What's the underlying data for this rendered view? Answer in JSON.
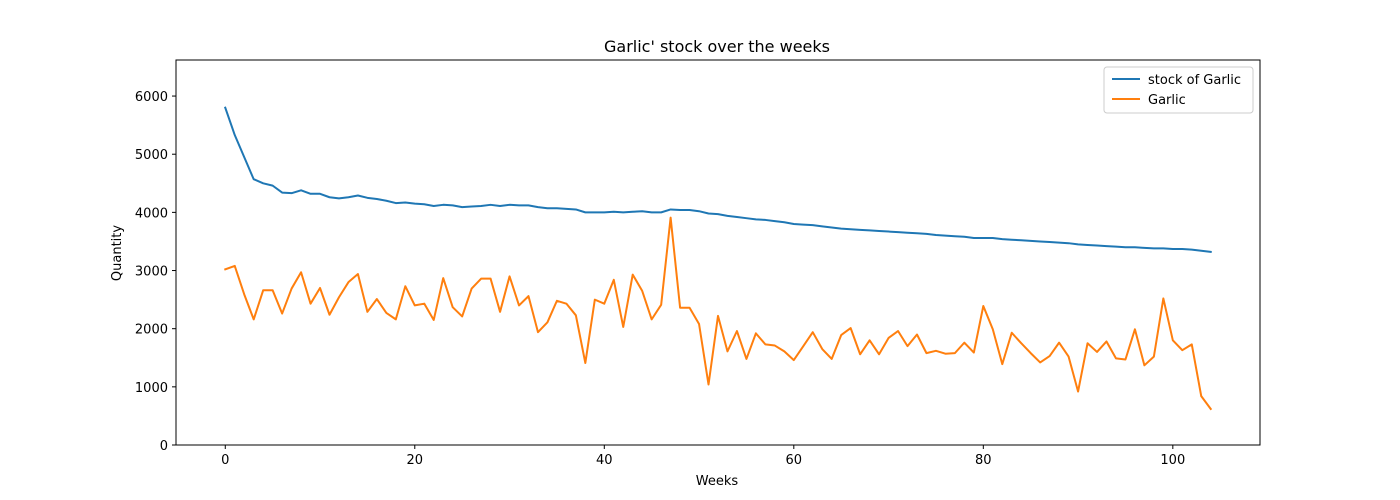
{
  "chart_data": {
    "type": "line",
    "title": "Garlic' stock over the weeks",
    "xlabel": "Weeks",
    "ylabel": "Quantity",
    "xlim": [
      -5.2,
      109.2
    ],
    "ylim": [
      0,
      6620
    ],
    "xticks": [
      0,
      20,
      40,
      60,
      80,
      100
    ],
    "yticks": [
      0,
      1000,
      2000,
      3000,
      4000,
      5000,
      6000
    ],
    "grid": false,
    "legend": "top-right",
    "series": [
      {
        "name": "stock of Garlic",
        "color": "#1f77b4",
        "x": [
          0,
          1,
          2,
          3,
          4,
          5,
          6,
          7,
          8,
          9,
          10,
          11,
          12,
          13,
          14,
          15,
          16,
          17,
          18,
          19,
          20,
          21,
          22,
          23,
          24,
          25,
          26,
          27,
          28,
          29,
          30,
          31,
          32,
          33,
          34,
          35,
          36,
          37,
          38,
          39,
          40,
          41,
          42,
          43,
          44,
          45,
          46,
          47,
          48,
          49,
          50,
          51,
          52,
          53,
          54,
          55,
          56,
          57,
          58,
          59,
          60,
          61,
          62,
          63,
          64,
          65,
          66,
          67,
          68,
          69,
          70,
          71,
          72,
          73,
          74,
          75,
          76,
          77,
          78,
          79,
          80,
          81,
          82,
          83,
          84,
          85,
          86,
          87,
          88,
          89,
          90,
          91,
          92,
          93,
          94,
          95,
          96,
          97,
          98,
          99,
          100,
          101,
          102,
          103,
          104
        ],
        "values": [
          5800,
          5330,
          4950,
          4570,
          4500,
          4460,
          4340,
          4330,
          4380,
          4320,
          4320,
          4260,
          4240,
          4260,
          4290,
          4250,
          4230,
          4200,
          4160,
          4170,
          4150,
          4140,
          4110,
          4130,
          4120,
          4090,
          4100,
          4110,
          4130,
          4110,
          4130,
          4120,
          4120,
          4090,
          4070,
          4070,
          4060,
          4050,
          4000,
          4000,
          4000,
          4010,
          4000,
          4010,
          4020,
          4000,
          4000,
          4050,
          4040,
          4040,
          4020,
          3980,
          3970,
          3940,
          3920,
          3900,
          3880,
          3870,
          3850,
          3830,
          3800,
          3790,
          3780,
          3760,
          3740,
          3720,
          3710,
          3700,
          3690,
          3680,
          3670,
          3660,
          3650,
          3640,
          3630,
          3610,
          3600,
          3590,
          3580,
          3560,
          3560,
          3560,
          3540,
          3530,
          3520,
          3510,
          3500,
          3490,
          3480,
          3470,
          3450,
          3440,
          3430,
          3420,
          3410,
          3400,
          3400,
          3390,
          3380,
          3380,
          3370,
          3370,
          3360,
          3340,
          3320
        ]
      },
      {
        "name": "Garlic",
        "color": "#ff7f0e",
        "x": [
          0,
          1,
          2,
          3,
          4,
          5,
          6,
          7,
          8,
          9,
          10,
          11,
          12,
          13,
          14,
          15,
          16,
          17,
          18,
          19,
          20,
          21,
          22,
          23,
          24,
          25,
          26,
          27,
          28,
          29,
          30,
          31,
          32,
          33,
          34,
          35,
          36,
          37,
          38,
          39,
          40,
          41,
          42,
          43,
          44,
          45,
          46,
          47,
          48,
          49,
          50,
          51,
          52,
          53,
          54,
          55,
          56,
          57,
          58,
          59,
          60,
          61,
          62,
          63,
          64,
          65,
          66,
          67,
          68,
          69,
          70,
          71,
          72,
          73,
          74,
          75,
          76,
          77,
          78,
          79,
          80,
          81,
          82,
          83,
          84,
          85,
          86,
          87,
          88,
          89,
          90,
          91,
          92,
          93,
          94,
          95,
          96,
          97,
          98,
          99,
          100,
          101,
          102,
          103,
          104
        ],
        "values": [
          3020,
          3080,
          2590,
          2160,
          2660,
          2660,
          2260,
          2690,
          2970,
          2430,
          2700,
          2240,
          2540,
          2800,
          2940,
          2290,
          2510,
          2270,
          2160,
          2730,
          2400,
          2430,
          2150,
          2870,
          2370,
          2210,
          2690,
          2860,
          2860,
          2290,
          2900,
          2400,
          2560,
          1940,
          2110,
          2480,
          2430,
          2230,
          1410,
          2500,
          2430,
          2840,
          2030,
          2930,
          2650,
          2160,
          2410,
          3910,
          2360,
          2360,
          2080,
          1040,
          2220,
          1610,
          1960,
          1480,
          1920,
          1730,
          1710,
          1610,
          1460,
          1700,
          1940,
          1650,
          1480,
          1890,
          2010,
          1560,
          1800,
          1560,
          1840,
          1960,
          1700,
          1900,
          1580,
          1620,
          1570,
          1580,
          1760,
          1590,
          2390,
          1990,
          1390,
          1930,
          1750,
          1580,
          1420,
          1530,
          1760,
          1520,
          920,
          1750,
          1600,
          1780,
          1490,
          1470,
          1990,
          1370,
          1520,
          2520,
          1800,
          1630,
          1730,
          840,
          620
        ]
      }
    ]
  }
}
